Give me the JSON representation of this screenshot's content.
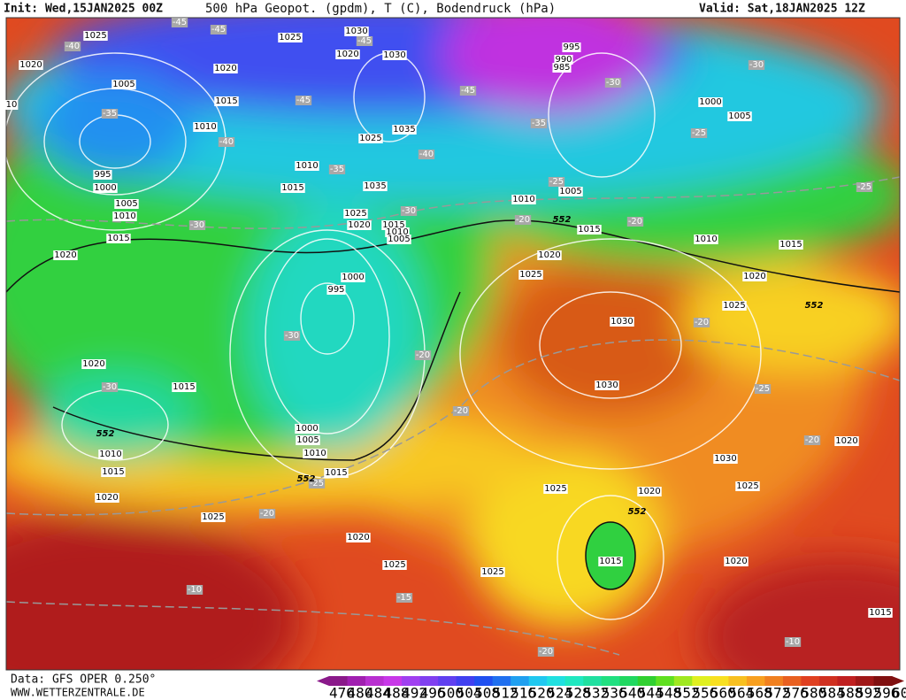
{
  "header": {
    "init": "Init: Wed,15JAN2025 00Z",
    "title": "500 hPa Geopot. (gpdm), T (C), Bodendruck (hPa)",
    "valid": "Valid: Sat,18JAN2025 12Z"
  },
  "footer": {
    "source": "Data: GFS OPER 0.250°",
    "site": "WWW.WETTERZENTRALE.DE"
  },
  "colorbar": {
    "ticks": [
      476,
      480,
      484,
      488,
      492,
      496,
      500,
      504,
      508,
      512,
      516,
      520,
      524,
      528,
      532,
      536,
      540,
      544,
      548,
      552,
      556,
      560,
      564,
      568,
      572,
      576,
      580,
      584,
      588,
      592,
      596,
      600
    ],
    "colors": [
      "#8a1a8a",
      "#a020b0",
      "#b830d0",
      "#c838e8",
      "#a040f0",
      "#8040f0",
      "#6040f0",
      "#4040f0",
      "#2050f0",
      "#2070f0",
      "#20a0f0",
      "#20c8f0",
      "#20e0e0",
      "#20e8c0",
      "#20e0a0",
      "#20e080",
      "#20d860",
      "#30d030",
      "#60e020",
      "#a0e820",
      "#e0f020",
      "#f8e020",
      "#f8c020",
      "#f8a020",
      "#f08020",
      "#e86020",
      "#e04020",
      "#d03020",
      "#c02020",
      "#a01818",
      "#801010"
    ]
  },
  "map": {
    "isobar_labels": [
      1025,
      1020,
      1020,
      1025,
      1030,
      1020,
      1030,
      1005,
      1015,
      1010,
      995,
      1000,
      1005,
      1010,
      1015,
      1020,
      1010,
      1015,
      1025,
      1035,
      1035,
      1025,
      1020,
      1015,
      1010,
      1005,
      995,
      990,
      985,
      1000,
      1005,
      1010,
      1005,
      1015,
      1010,
      1015,
      1020,
      1025,
      1020,
      1025,
      1030,
      1030,
      1000,
      995,
      1020,
      1015,
      1010,
      1015,
      1020,
      1000,
      1005,
      1010,
      1015,
      1025,
      1020,
      1025,
      1025,
      1025,
      1020,
      1015,
      1030,
      1025,
      1020,
      1020,
      1015,
      10
    ],
    "temperature_labels": [
      -45,
      -40,
      -45,
      -45,
      -45,
      -45,
      -35,
      -40,
      -35,
      -40,
      -35,
      -30,
      -30,
      -25,
      -25,
      -20,
      -20,
      -30,
      -30,
      -25,
      -20,
      -20,
      -30,
      -25,
      -20,
      -20,
      -30,
      -25,
      -20,
      -10,
      -15,
      -20,
      -10
    ],
    "contour_labels": [
      552,
      552,
      552,
      552,
      552
    ]
  }
}
